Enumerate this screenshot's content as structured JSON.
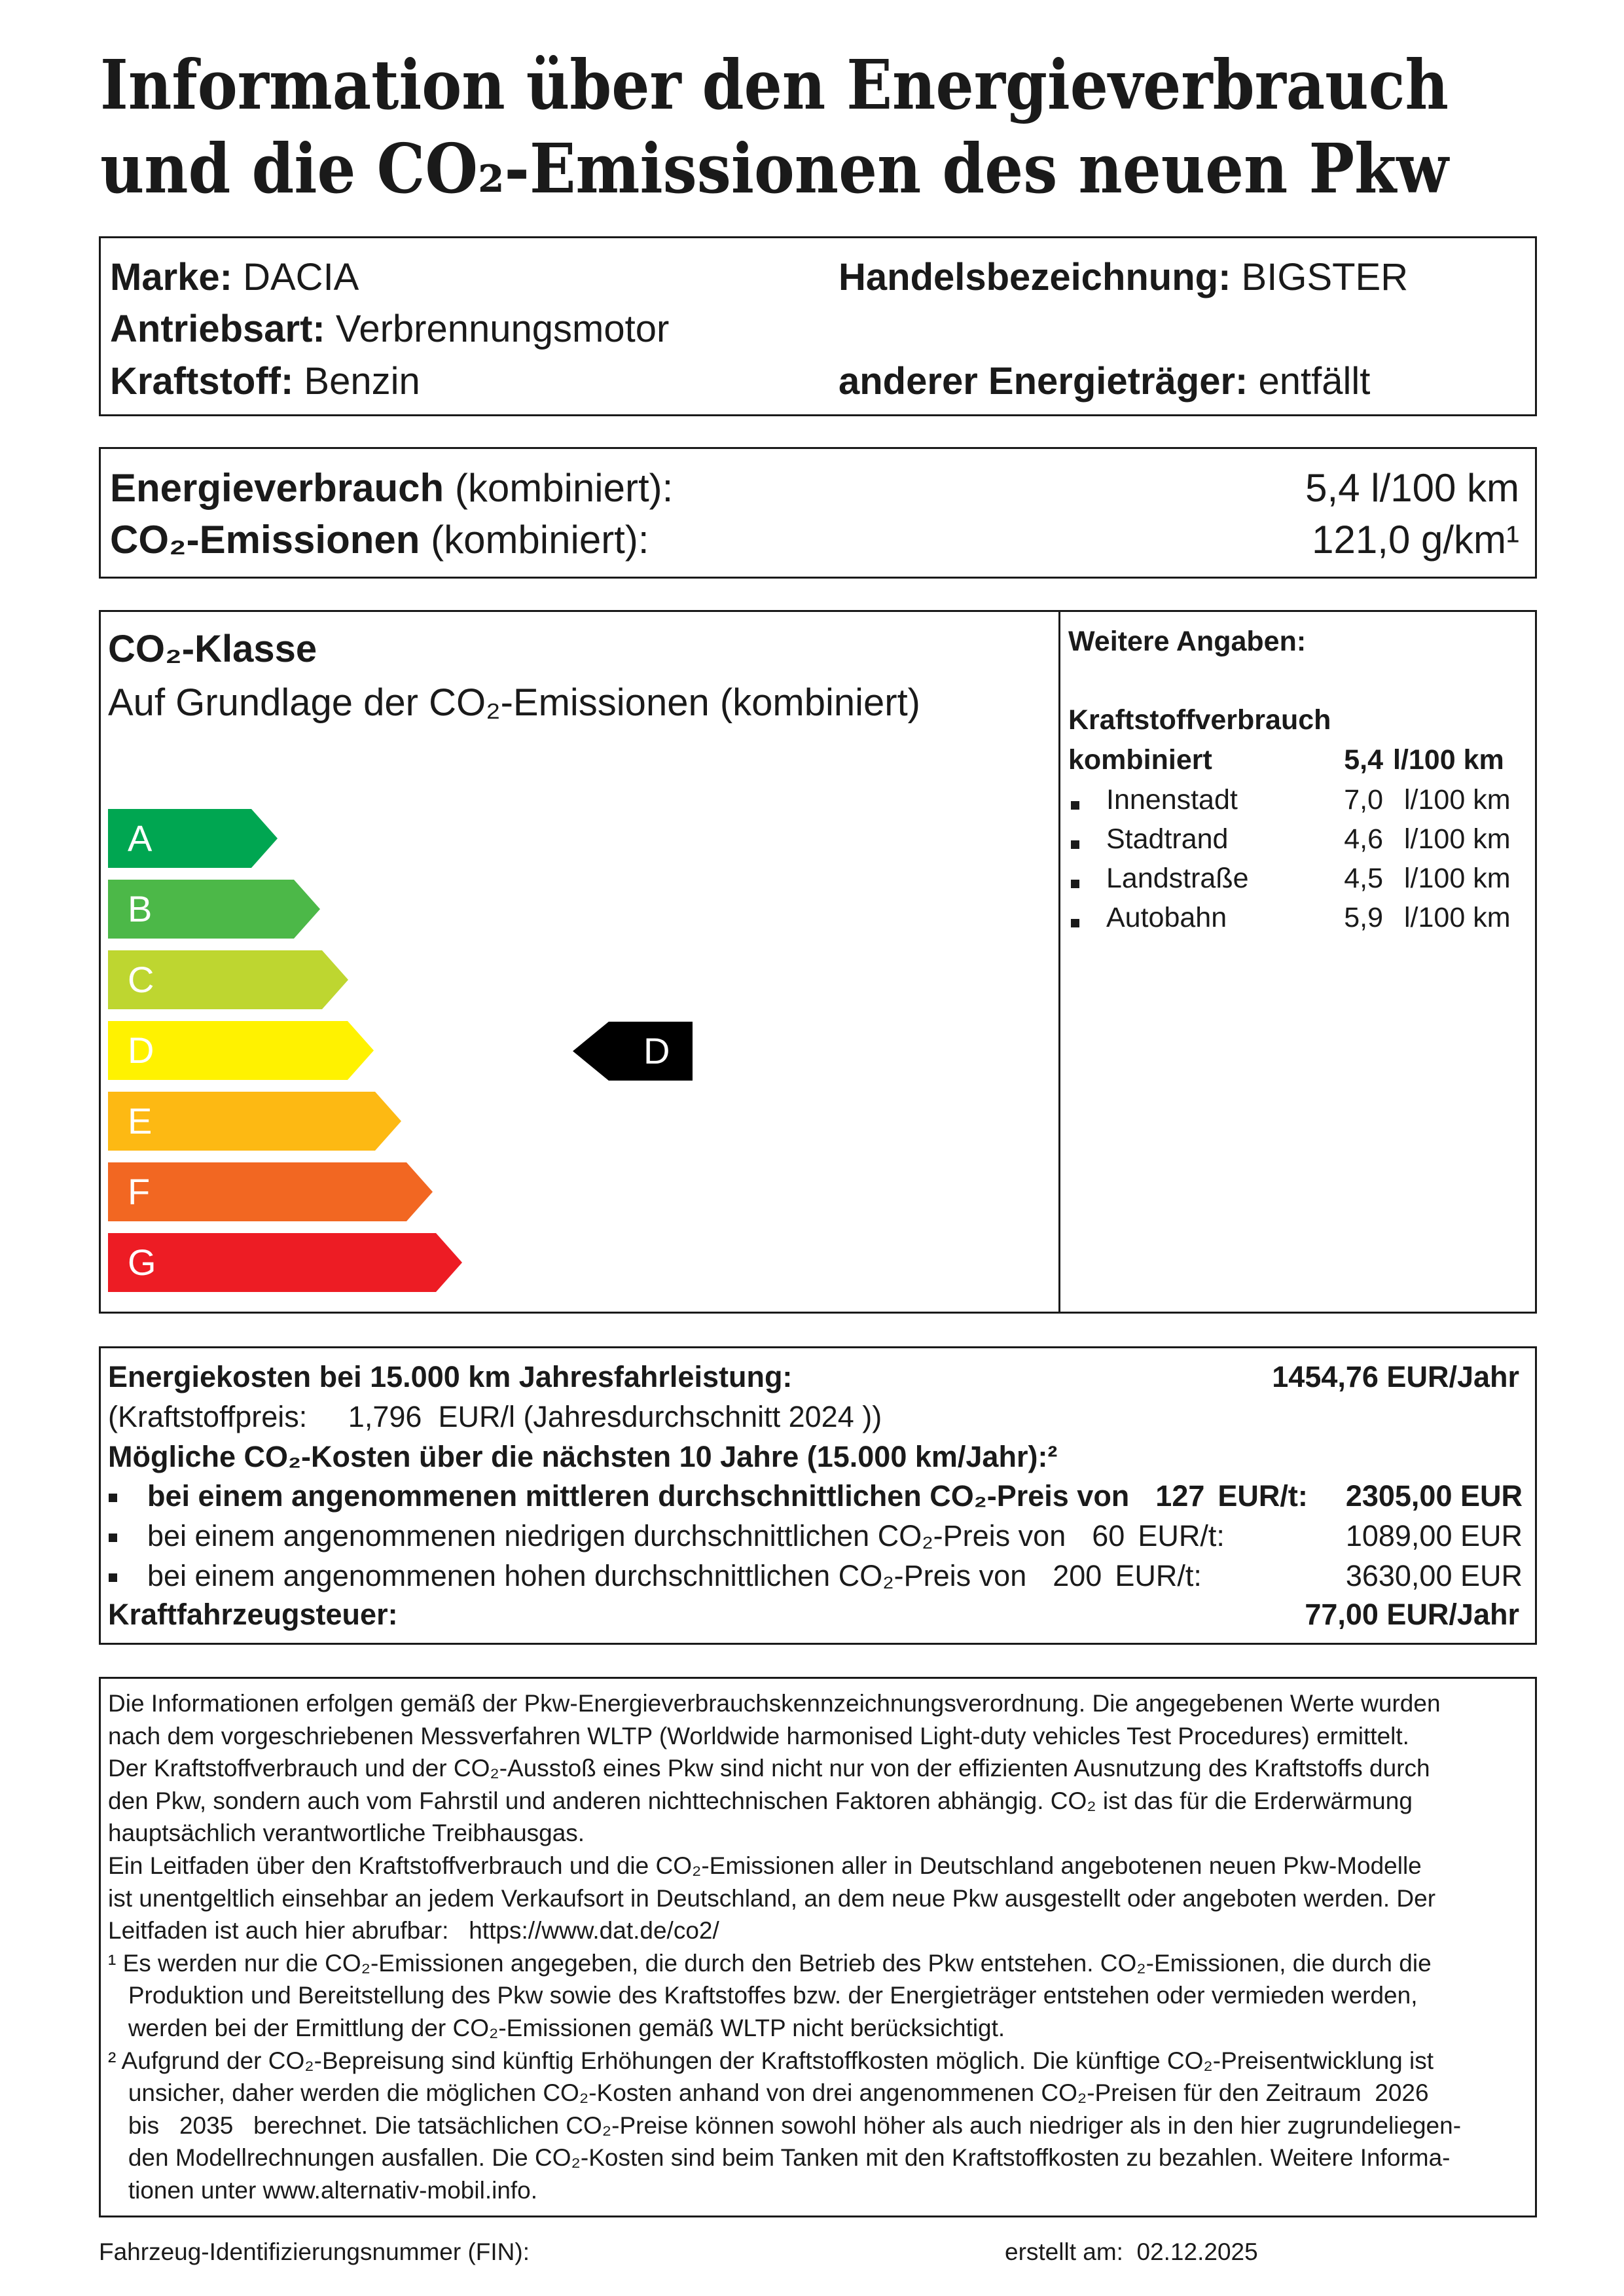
{
  "title": {
    "line1": "Information über den Energieverbrauch",
    "line2": "und die CO₂-Emissionen des neuen Pkw"
  },
  "vehicle": {
    "marke_label": "Marke:",
    "marke": "DACIA",
    "handel_label": "Handelsbezeichnung:",
    "handel": "BIGSTER",
    "antrieb_label": "Antriebsart:",
    "antrieb": "Verbrennungsmotor",
    "kraftstoff_label": "Kraftstoff:",
    "kraftstoff": "Benzin",
    "anderer_label": "anderer Energieträger:",
    "anderer": "entfällt"
  },
  "summary": {
    "energy_label": "Energieverbrauch",
    "energy_suffix": "(kombiniert):",
    "energy_value": "5,4 l/100 km",
    "co2_label": "CO₂-Emissionen",
    "co2_suffix": "(kombiniert):",
    "co2_value": "121,0 g/km¹"
  },
  "co2_class": {
    "heading": "CO₂-Klasse",
    "subtitle": "Auf Grundlage der CO₂-Emissionen (kombiniert)",
    "classes": [
      {
        "label": "A",
        "color": "#00a651"
      },
      {
        "label": "B",
        "color": "#4cb848"
      },
      {
        "label": "C",
        "color": "#bed630"
      },
      {
        "label": "D",
        "color": "#fff200"
      },
      {
        "label": "E",
        "color": "#fdb913"
      },
      {
        "label": "F",
        "color": "#f26722"
      },
      {
        "label": "G",
        "color": "#ed1c24"
      }
    ],
    "current": "D"
  },
  "further": {
    "heading": "Weitere Angaben:",
    "fuel_heading": "Kraftstoffverbrauch",
    "combined_label": "kombiniert",
    "combined_value": "5,4",
    "unit": "l/100 km",
    "rows": [
      {
        "label": "Innenstadt",
        "value": "7,0",
        "unit": "l/100 km"
      },
      {
        "label": "Stadtrand",
        "value": "4,6",
        "unit": "l/100 km"
      },
      {
        "label": "Landstraße",
        "value": "4,5",
        "unit": "l/100 km"
      },
      {
        "label": "Autobahn",
        "value": "5,9",
        "unit": "l/100 km"
      }
    ]
  },
  "costs": {
    "energy_label": "Energiekosten bei 15.000 km Jahresfahrleistung:",
    "energy_value": "1454,76  EUR/Jahr",
    "fuel_price_prefix": "(Kraftstoffpreis:",
    "fuel_price": "1,796",
    "fuel_price_suffix": "EUR/l (Jahresdurchschnitt  2024 ))",
    "co2_heading": "Mögliche CO₂-Kosten über die nächsten 10 Jahre (15.000 km/Jahr):²",
    "scenarios": [
      {
        "text": "bei einem angenommenen mittleren durchschnittlichen CO₂-Preis von",
        "price": "127",
        "unit": "EUR/t:",
        "value": "2305,00 EUR"
      },
      {
        "text": "bei einem angenommenen niedrigen durchschnittlichen CO₂-Preis von",
        "price": "60",
        "unit": "EUR/t:",
        "value": "1089,00 EUR"
      },
      {
        "text": "bei einem angenommenen hohen durchschnittlichen CO₂-Preis von",
        "price": "200",
        "unit": "EUR/t:",
        "value": "3630,00 EUR"
      }
    ],
    "tax_label": "Kraftfahrzeugsteuer:",
    "tax_value": "77,00  EUR/Jahr"
  },
  "notes": {
    "lines": [
      "Die Informationen erfolgen gemäß der Pkw-Energieverbrauchskennzeichnungsverordnung. Die angegebenen Werte wurden",
      "nach dem vorgeschriebenen Messverfahren WLTP (Worldwide harmonised Light-duty vehicles Test Procedures) ermittelt.",
      "Der Kraftstoffverbrauch und der CO₂-Ausstoß eines Pkw sind nicht nur von der effizienten Ausnutzung des Kraftstoffs durch",
      "den Pkw, sondern auch vom Fahrstil und anderen nichttechnischen Faktoren abhängig. CO₂ ist das für die Erderwärmung",
      "hauptsächlich verantwortliche Treibhausgas.",
      "Ein Leitfaden über den Kraftstoffverbrauch und die CO₂-Emissionen aller in Deutschland angebotenen neuen Pkw-Modelle",
      "ist unentgeltlich einsehbar an jedem Verkaufsort in Deutschland, an dem neue Pkw ausgestellt oder angeboten werden. Der",
      "Leitfaden ist auch hier abrufbar:   https://www.dat.de/co2/",
      "¹ Es werden nur die CO₂-Emissionen angegeben, die durch den Betrieb des Pkw entstehen. CO₂-Emissionen, die durch die",
      "   Produktion und Bereitstellung des Pkw sowie des Kraftstoffes bzw. der Energieträger entstehen oder vermieden werden,",
      "   werden bei der Ermittlung der CO₂-Emissionen gemäß WLTP nicht berücksichtigt.",
      "² Aufgrund der CO₂-Bepreisung sind künftig Erhöhungen der Kraftstoffkosten möglich. Die künftige CO₂-Preisentwicklung ist",
      "   unsicher, daher werden die möglichen CO₂-Kosten anhand von drei angenommenen CO₂-Preisen für den Zeitraum  2026",
      "   bis   2035   berechnet. Die tatsächlichen CO₂-Preise können sowohl höher als auch niedriger als in den hier zugrundeliegen-",
      "   den Modellrechnungen ausfallen. Die CO₂-Kosten sind beim Tanken mit den Kraftstoffkosten zu bezahlen. Weitere Informa-",
      "   tionen unter www.alternativ-mobil.info."
    ]
  },
  "footer": {
    "fin_label": "Fahrzeug-Identifizierungsnummer (FIN):",
    "created_label": "erstellt am:",
    "created_date": "02.12.2025"
  }
}
